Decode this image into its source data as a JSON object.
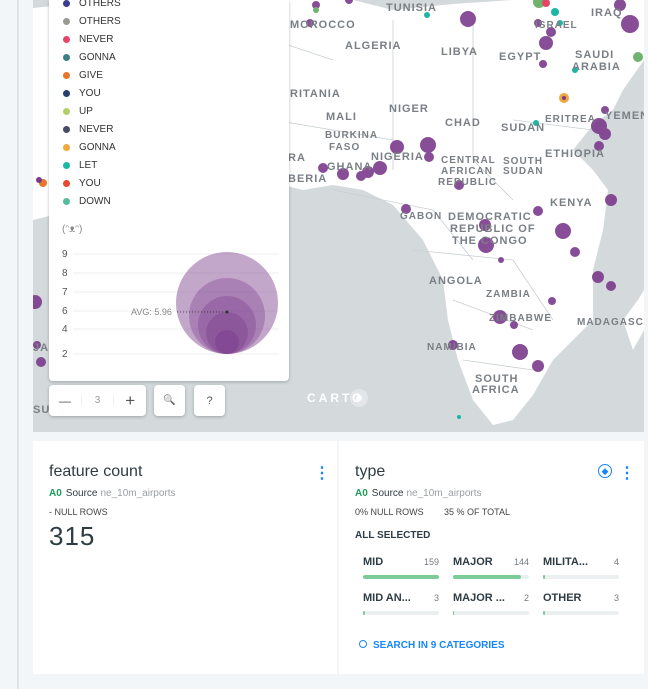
{
  "map": {
    "countries": [
      "TUNISIA",
      "IRAQ",
      "MOROCCO",
      "ALGERIA",
      "LIBYA",
      "EGYPT",
      "ISRAEL",
      "SAUDI",
      "ARABIA",
      "RITANIA",
      "NIGER",
      "MALI",
      "CHAD",
      "SUDAN",
      "ERITREA",
      "YEMEN",
      "BURKINA",
      "FASO",
      "NIGERIA",
      "GHANA",
      "CENTRAL",
      "AFRICAN",
      "REPUBLIC",
      "SOUTH",
      "SUDAN",
      "ETHIOPIA",
      "KENYA",
      "GABON",
      "DEMOCRATIC",
      "REPUBLIC OF",
      "THE CONGO",
      "ANGOLA",
      "ZAMBIA",
      "ZIMBABWE",
      "MADAGASCA",
      "NAMIBIA",
      "SOUTH",
      "AFRICA",
      "RA",
      "BERIA",
      "JA",
      "SU"
    ],
    "attribution": "CARTO"
  },
  "legend": {
    "categories": [
      {
        "label": "OTHERS",
        "color": "#3b3b8f"
      },
      {
        "label": "OTHERS",
        "color": "#9a9a92"
      },
      {
        "label": "NEVER",
        "color": "#e64569"
      },
      {
        "label": "GONNA",
        "color": "#3d7f88"
      },
      {
        "label": "GIVE",
        "color": "#e8752a"
      },
      {
        "label": "YOU",
        "color": "#27406e"
      },
      {
        "label": "UP",
        "color": "#b1d06a"
      },
      {
        "label": "NEVER",
        "color": "#4a4a6a"
      },
      {
        "label": "GONNA",
        "color": "#f0a83c"
      },
      {
        "label": "LET",
        "color": "#19b7a4"
      },
      {
        "label": "YOU",
        "color": "#e8482f"
      },
      {
        "label": "DOWN",
        "color": "#54bc9c"
      }
    ],
    "face": "(ᵔᴥᵔ)",
    "size_ticks": [
      "9",
      "8",
      "7",
      "6",
      "4",
      "2"
    ],
    "avg_label": "AVG: 5.96",
    "bubble_color": "#7b3b8c"
  },
  "controls": {
    "zoom_out": "—",
    "zoom_level": "3",
    "zoom_in": "+",
    "search": "🔍",
    "help": "?"
  },
  "widgets": {
    "feature_count": {
      "title": "feature count",
      "source_tag": "A0",
      "source_label": "Source",
      "source_name": "ne_10m_airports",
      "null_rows": "- NULL ROWS",
      "count": "315"
    },
    "type": {
      "title": "type",
      "source_tag": "A0",
      "source_label": "Source",
      "source_name": "ne_10m_airports",
      "null_rows": "0% NULL ROWS",
      "total": "35 % OF TOTAL",
      "selection": "ALL SELECTED",
      "categories": [
        {
          "name": "MID",
          "value": "159",
          "fraction": 1.0
        },
        {
          "name": "MAJOR",
          "value": "144",
          "fraction": 0.9
        },
        {
          "name": "MILITA...",
          "value": "4",
          "fraction": 0.025
        },
        {
          "name": "MID AN...",
          "value": "3",
          "fraction": 0.02
        },
        {
          "name": "MAJOR ...",
          "value": "2",
          "fraction": 0.015
        },
        {
          "name": "OTHER",
          "value": "3",
          "fraction": 0.02
        }
      ],
      "search_label": "SEARCH IN 9 CATEGORIES"
    }
  },
  "colors": {
    "accent": "#1785fb",
    "bar": "#7ccc9a",
    "purple": "#7b3b8c"
  }
}
